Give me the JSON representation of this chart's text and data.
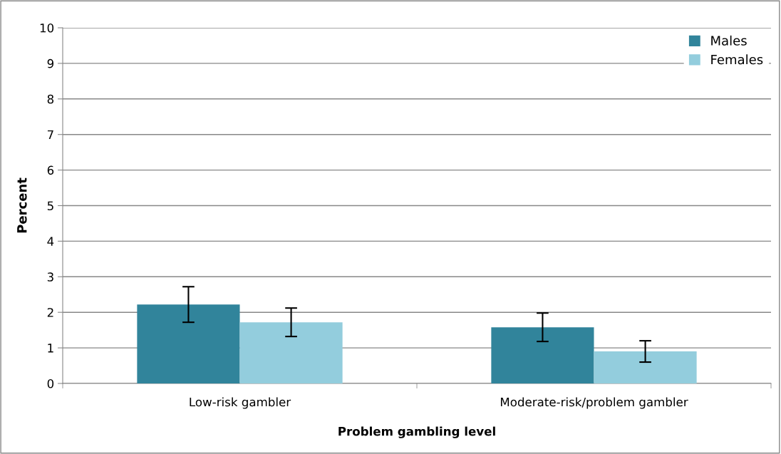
{
  "chart_data": {
    "type": "bar",
    "xlabel": "Problem gambling level",
    "ylabel": "Percent",
    "categories": [
      "Low-risk gambler",
      "Moderate-risk/problem gambler"
    ],
    "series": [
      {
        "name": "Males",
        "color": "#31849b",
        "values": [
          2.22,
          1.58
        ],
        "errors": [
          0.5,
          0.4
        ]
      },
      {
        "name": "Females",
        "color": "#93cddd",
        "values": [
          1.72,
          0.9
        ],
        "errors": [
          0.4,
          0.3
        ]
      }
    ],
    "ylim": [
      0,
      10
    ],
    "yticks": [
      0,
      1,
      2,
      3,
      4,
      5,
      6,
      7,
      8,
      9,
      10
    ],
    "grid": "y",
    "legend": "top right"
  }
}
